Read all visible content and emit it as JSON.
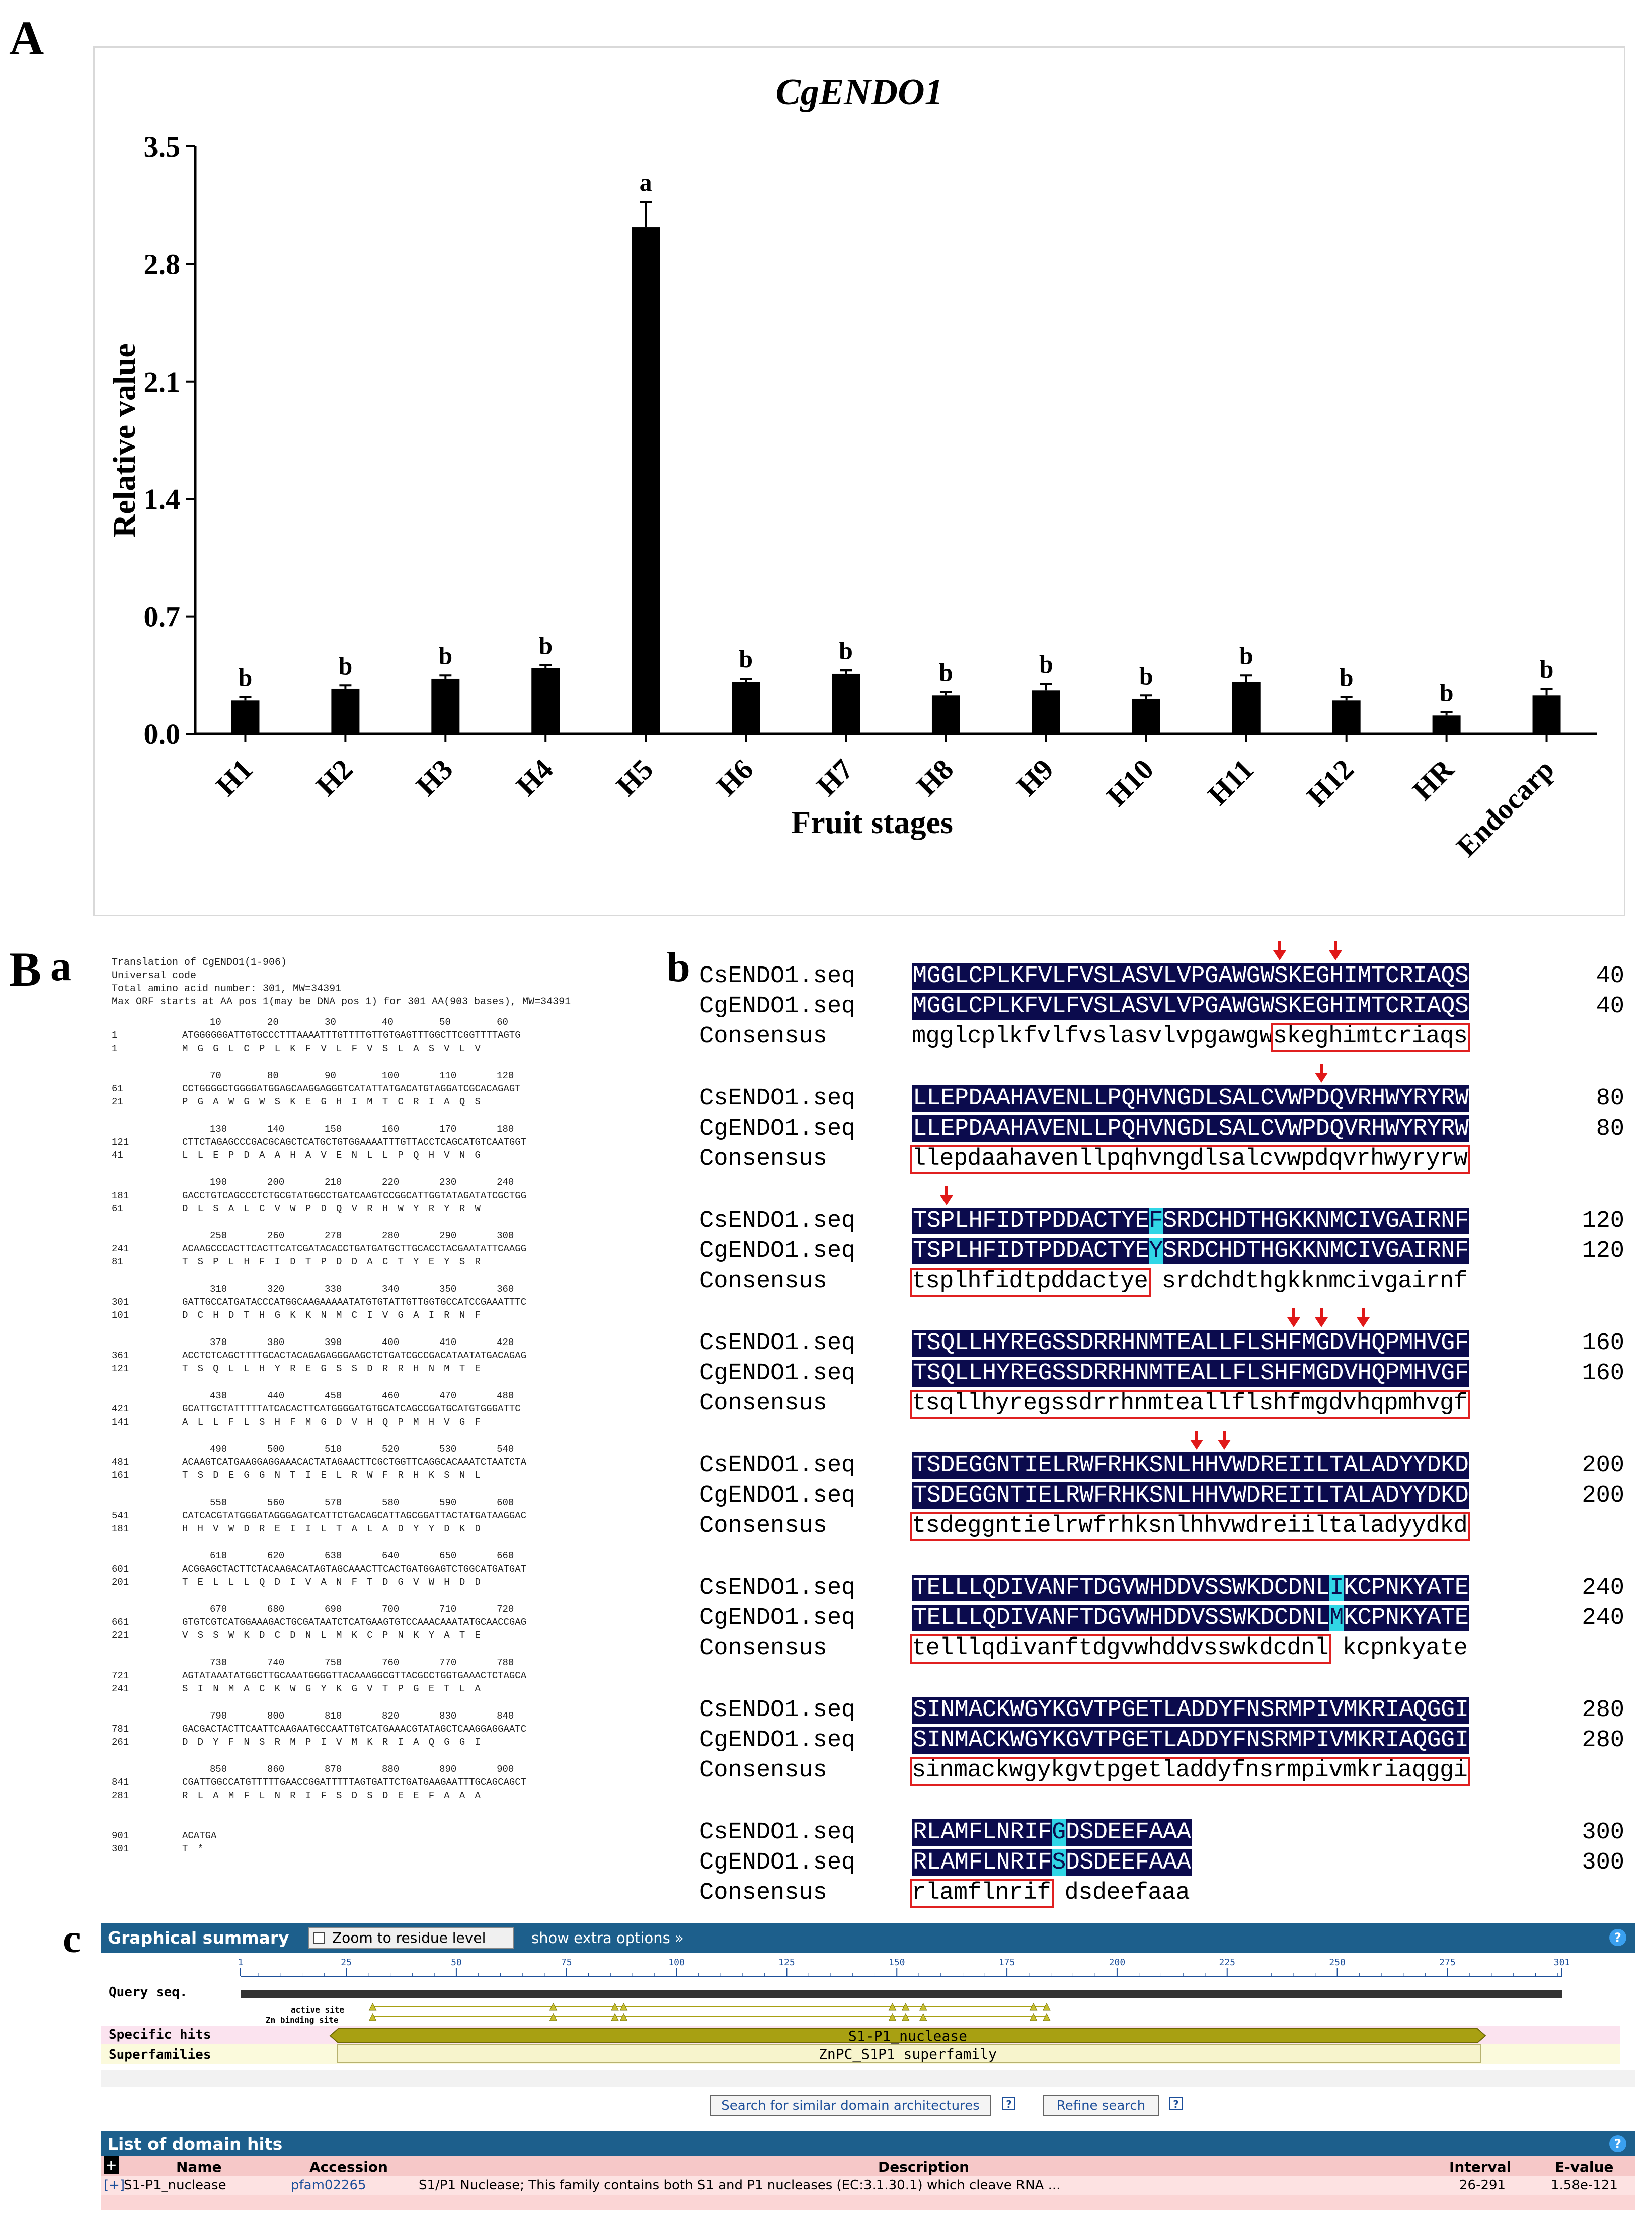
{
  "panel_labels": {
    "a": "A",
    "b_main": "B",
    "b_sub_a": "a",
    "b_sub_b": "b",
    "c": "c"
  },
  "chart_data": {
    "type": "bar",
    "title": "CgENDO1",
    "xlabel": "Fruit stages",
    "ylabel": "Relative value",
    "ylim": [
      0,
      3.5
    ],
    "yticks": [
      "0.0",
      "0.7",
      "1.4",
      "2.1",
      "2.8",
      "3.5"
    ],
    "ytick_values": [
      0,
      0.7,
      1.4,
      2.1,
      2.8,
      3.5
    ],
    "categories": [
      "H1",
      "H2",
      "H3",
      "H4",
      "H5",
      "H6",
      "H7",
      "H8",
      "H9",
      "H10",
      "H11",
      "H12",
      "HR",
      "Endocarp"
    ],
    "values": [
      0.2,
      0.27,
      0.33,
      0.39,
      3.02,
      0.31,
      0.36,
      0.23,
      0.26,
      0.21,
      0.31,
      0.2,
      0.11,
      0.23
    ],
    "errors": [
      0.02,
      0.02,
      0.02,
      0.02,
      0.15,
      0.02,
      0.02,
      0.02,
      0.04,
      0.02,
      0.04,
      0.02,
      0.02,
      0.04
    ],
    "significance": [
      "b",
      "b",
      "b",
      "b",
      "a",
      "b",
      "b",
      "b",
      "b",
      "b",
      "b",
      "b",
      "b",
      "b"
    ],
    "colors": {
      "bar": "#000000",
      "frame": "#d9d9d9"
    }
  },
  "translation": {
    "header": [
      "Translation of CgENDO1(1-906)",
      "Universal code",
      "Total amino acid number: 301, MW=34391",
      "Max ORF starts at AA pos 1(may be DNA pos 1) for 301 AA(903 bases), MW=34391"
    ],
    "rows": [
      {
        "ruler": "10        20        30        40        50        60",
        "dna_pos": "1",
        "dna": "ATGGGGGGATTGTGCCCTTTAAAATTTGTTTTGTTGTGAGTTTGGCTTCGGTTTTAGTG",
        "aa_pos": "1",
        "aa": "M  G  G  L  C  P  L  K  F  V  L  F  V  S  L  A  S  V  L  V"
      },
      {
        "ruler": "70        80        90        100       110       120",
        "dna_pos": "61",
        "dna": "CCTGGGGCTGGGGATGGAGCAAGGAGGGTCATATTATGACATGTAGGATCGCACAGAGT",
        "aa_pos": "21",
        "aa": "P  G  A  W  G  W  S  K  E  G  H  I  M  T  C  R  I  A  Q  S"
      },
      {
        "ruler": "130       140       150       160       170       180",
        "dna_pos": "121",
        "dna": "CTTCTAGAGCCCGACGCAGCTCATGCTGTGGAAAATTTGTTACCTCAGCATGTCAATGGT",
        "aa_pos": "41",
        "aa": "L  L  E  P  D  A  A  H  A  V  E  N  L  L  P  Q  H  V  N  G"
      },
      {
        "ruler": "190       200       210       220       230       240",
        "dna_pos": "181",
        "dna": "GACCTGTCAGCCCTCTGCGTATGGCCTGATCAAGTCCGGCATTGGTATAGATATCGCTGG",
        "aa_pos": "61",
        "aa": "D  L  S  A  L  C  V  W  P  D  Q  V  R  H  W  Y  R  Y  R  W"
      },
      {
        "ruler": "250       260       270       280       290       300",
        "dna_pos": "241",
        "dna": "ACAAGCCCACTTCACTTCATCGATACACCTGATGATGCTTGCACCTACGAATATTCAAGG",
        "aa_pos": "81",
        "aa": "T  S  P  L  H  F  I  D  T  P  D  D  A  C  T  Y  E  Y  S  R"
      },
      {
        "ruler": "310       320       330       340       350       360",
        "dna_pos": "301",
        "dna": "GATTGCCATGATACCCATGGCAAGAAAAATATGTGTATTGTTGGTGCCATCCGAAATTTC",
        "aa_pos": "101",
        "aa": "D  C  H  D  T  H  G  K  K  N  M  C  I  V  G  A  I  R  N  F"
      },
      {
        "ruler": "370       380       390       400       410       420",
        "dna_pos": "361",
        "dna": "ACCTCTCAGCTTTTGCACTACAGAGAGGGAAGCTCTGATCGCCGACATAATATGACAGAG",
        "aa_pos": "121",
        "aa": "T  S  Q  L  L  H  Y  R  E  G  S  S  D  R  R  H  N  M  T  E"
      },
      {
        "ruler": "430       440       450       460       470       480",
        "dna_pos": "421",
        "dna": "GCATTGCTATTTTTATCACACTTCATGGGGATGTGCATCAGCCGATGCATGTGGGATTC",
        "aa_pos": "141",
        "aa": "A  L  L  F  L  S  H  F  M  G  D  V  H  Q  P  M  H  V  G  F"
      },
      {
        "ruler": "490       500       510       520       530       540",
        "dna_pos": "481",
        "dna": "ACAAGTCATGAAGGAGGAAACACTATAGAACTTCGCTGGTTCAGGCACAAATCTAATCTA",
        "aa_pos": "161",
        "aa": "T  S  D  E  G  G  N  T  I  E  L  R  W  F  R  H  K  S  N  L"
      },
      {
        "ruler": "550       560       570       580       590       600",
        "dna_pos": "541",
        "dna": "CATCACGTATGGGATAGGGAGATCATTCTGACAGCATTAGCGGATTACTATGATAAGGAC",
        "aa_pos": "181",
        "aa": "H  H  V  W  D  R  E  I  I  L  T  A  L  A  D  Y  Y  D  K  D"
      },
      {
        "ruler": "610       620       630       640       650       660",
        "dna_pos": "601",
        "dna": "ACGGAGCTACTTCTACAAGACATAGTAGCAAACTTCACTGATGGAGTCTGGCATGATGAT",
        "aa_pos": "201",
        "aa": "T  E  L  L  L  Q  D  I  V  A  N  F  T  D  G  V  W  H  D  D"
      },
      {
        "ruler": "670       680       690       700       710       720",
        "dna_pos": "661",
        "dna": "GTGTCGTCATGGAAAGACTGCGATAATCTCATGAAGTGTCCAAACAAATATGCAACCGAG",
        "aa_pos": "221",
        "aa": "V  S  S  W  K  D  C  D  N  L  M  K  C  P  N  K  Y  A  T  E"
      },
      {
        "ruler": "730       740       750       760       770       780",
        "dna_pos": "721",
        "dna": "AGTATAAATATGGCTTGCAAATGGGGTTACAAAGGCGTTACGCCTGGTGAAACTCTAGCA",
        "aa_pos": "241",
        "aa": "S  I  N  M  A  C  K  W  G  Y  K  G  V  T  P  G  E  T  L  A"
      },
      {
        "ruler": "790       800       810       820       830       840",
        "dna_pos": "781",
        "dna": "GACGACTACTTCAATTCAAGAATGCCAATTGTCATGAAACGTATAGCTCAAGGAGGAATC",
        "aa_pos": "261",
        "aa": "D  D  Y  F  N  S  R  M  P  I  V  M  K  R  I  A  Q  G  G  I"
      },
      {
        "ruler": "850       860       870       880       890       900",
        "dna_pos": "841",
        "dna": "CGATTGGCCATGTTTTTGAACCGGATTTTTAGTGATTCTGATGAAGAATTTGCAGCAGCT",
        "aa_pos": "281",
        "aa": "R  L  A  M  F  L  N  R  I  F  S  D  S  D  E  E  F  A  A  A"
      },
      {
        "ruler": "",
        "dna_pos": "901",
        "dna": "ACATGA",
        "aa_pos": "301",
        "aa": "T  *"
      }
    ]
  },
  "alignment": {
    "seq1_name": "CsENDO1.seq",
    "seq2_name": "CgENDO1.seq",
    "consensus_name": "Consensus",
    "blocks": [
      {
        "s1": "MGGLCPLKFVLFVSLASVLVPGAWGWSKEGHIMTCRIAQS",
        "s2": "MGGLCPLKFVLFVSLASVLVPGAWGWSKEGHIMTCRIAQS",
        "cons": "mgglcplkfvlfvslasvlvpgawgwskeghimtcriaqs",
        "count": "40"
      },
      {
        "s1": "LLEPDAAHAVENLLPQHVNGDLSALCVWPDQVRHWYRYRW",
        "s2": "LLEPDAAHAVENLLPQHVNGDLSALCVWPDQVRHWYRYRW",
        "cons": "llepdaahavenllpqhvngdlsalcvwpdqvrhwyryrw",
        "count": "80"
      },
      {
        "s1": "TSPLHFIDTPDDACTYEFSRDCHDTHGKKNMCIVGAIRNF",
        "s2": "TSPLHFIDTPDDACTYEYSRDCHDTHGKKNMCIVGAIRNF",
        "cons": "tsplhfidtpddactye srdchdthgkknmcivgairnf",
        "count": "120"
      },
      {
        "s1": "TSQLLHYREGSSDRRHNMTEALLFLSHFMGDVHQPMHVGF",
        "s2": "TSQLLHYREGSSDRRHNMTEALLFLSHFMGDVHQPMHVGF",
        "cons": "tsqllhyregssdrrhnmteallflshfmgdvhqpmhvgf",
        "count": "160"
      },
      {
        "s1": "TSDEGGNTIELRWFRHKSNLHHVWDREIILTALADYYDKD",
        "s2": "TSDEGGNTIELRWFRHKSNLHHVWDREIILTALADYYDKD",
        "cons": "tsdeggntielrwfrhksnlhhvwdreiiltaladyydkd",
        "count": "200"
      },
      {
        "s1": "TELLLQDIVANFTDGVWHDDVSSWKDCDNLIKCPNKYATE",
        "s2": "TELLLQDIVANFTDGVWHDDVSSWKDCDNLMKCPNKYATE",
        "cons": "telllqdivanftdgvwhddvsswkdcdnl kcpnkyate",
        "count": "240"
      },
      {
        "s1": "SINMACKWGYKGVTPGETLADDYFNSRMPIVMKRIAQGGI",
        "s2": "SINMACKWGYKGVTPGETLADDYFNSRMPIVMKRIAQGGI",
        "cons": "sinmackwgykgvtpgetladdyfnsrmpivmkriaqggi",
        "count": "280"
      },
      {
        "s1": "RLAMFLNRIFGDSDEEFAAA",
        "s2": "RLAMFLNRIFSDSDEEFAAA",
        "cons": "rlamflnrif dsdeefaaa",
        "count": "300"
      }
    ],
    "colors": {
      "seq_bg": "#0b0b4d",
      "highlight": "#30d6e6",
      "box": "#e02020",
      "arrow": "#e01818"
    }
  },
  "cdd": {
    "graphical_title": "Graphical summary",
    "zoom_label": "Zoom to residue level",
    "extra_options": "show extra options »",
    "help": "?",
    "query_label": "Query seq.",
    "ruler_ticks": [
      "1",
      "25",
      "50",
      "75",
      "100",
      "125",
      "150",
      "175",
      "200",
      "225",
      "250",
      "275",
      "301"
    ],
    "active_site_label": "active site",
    "zn_site_label": "Zn binding site",
    "specific_label": "Specific hits",
    "superfamilies_label": "Superfamilies",
    "specific_hit": "S1-P1_nuclease",
    "superfamily_hit": "ZnPC_S1P1 superfamily",
    "search_similar_button": "Search for similar domain architectures",
    "refine_button": "Refine search",
    "list_title": "List of domain hits",
    "table_headers": {
      "toggle": "+",
      "name": "Name",
      "accession": "Accession",
      "description": "Description",
      "interval": "Interval",
      "evalue": "E-value"
    },
    "rows": [
      {
        "toggle": "[+]",
        "name": "S1-P1_nuclease",
        "accession": "pfam02265",
        "description": "S1/P1 Nuclease; This family contains both S1 and P1 nucleases (EC:3.1.30.1) which cleave RNA ...",
        "interval": "26-291",
        "evalue": "1.58e-121"
      }
    ],
    "colors": {
      "bar_blue": "#1d5f8c",
      "hit": "#a8a012",
      "table_head": "#f6c8c8",
      "table_row": "#fde2e2"
    }
  }
}
